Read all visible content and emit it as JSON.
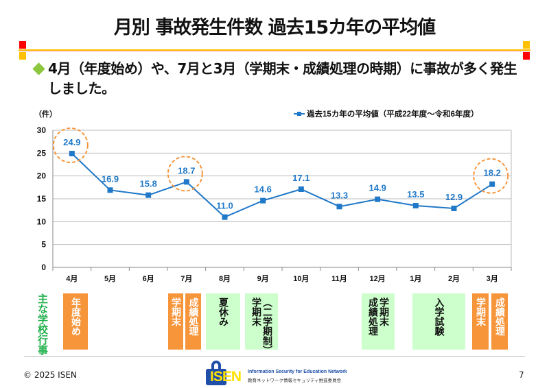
{
  "title": "月別 事故発生件数 過去15カ年の平均値",
  "bullet": "4月（年度始め）や、7月と3月（学期末・成績処理の時期）に事故が多く発生しました。",
  "colors": {
    "line": "#1f78c8",
    "highlight": "#f7953b",
    "event_orange": "#f7953b",
    "event_green": "#ccffcc",
    "event_label": "#22b14c",
    "bullet": "#8dc63f"
  },
  "chart_data": {
    "type": "line",
    "ylabel": "（件）",
    "categories": [
      "4月",
      "5月",
      "6月",
      "7月",
      "8月",
      "9月",
      "10月",
      "11月",
      "12月",
      "1月",
      "2月",
      "3月"
    ],
    "series": [
      {
        "name": "過去15カ年の平均値（平成22年度～令和6年度）",
        "values": [
          24.9,
          16.9,
          15.8,
          18.7,
          11.0,
          14.6,
          17.1,
          13.3,
          14.9,
          13.5,
          12.9,
          18.2
        ]
      }
    ],
    "ylim": [
      0,
      30
    ],
    "yticks": [
      0,
      5,
      10,
      15,
      20,
      25,
      30
    ],
    "grid": true,
    "legend": "top-right",
    "highlighted": [
      "4月",
      "7月",
      "3月"
    ]
  },
  "events": {
    "label": "主な学校行事",
    "items": [
      {
        "text": "年度始め",
        "style": "orange"
      },
      {
        "text": "学期末",
        "style": "orange"
      },
      {
        "text": "成績処理",
        "style": "orange"
      },
      {
        "text": "夏休み",
        "style": "green"
      },
      {
        "text": "（二学期制）\n学期末",
        "style": "green"
      },
      {
        "text": "学期末\n成績処理",
        "style": "green"
      },
      {
        "text": "入学試験",
        "style": "green"
      },
      {
        "text": "学期末",
        "style": "orange"
      },
      {
        "text": "成績処理",
        "style": "orange"
      }
    ]
  },
  "footer": {
    "copyright": "© 2025 ISEN",
    "logo_text": "ISEN",
    "logo_en": "Information Security for Education Network",
    "logo_jp": "教育ネットワーク情報セキュリティ推進委員会",
    "page": "7"
  }
}
